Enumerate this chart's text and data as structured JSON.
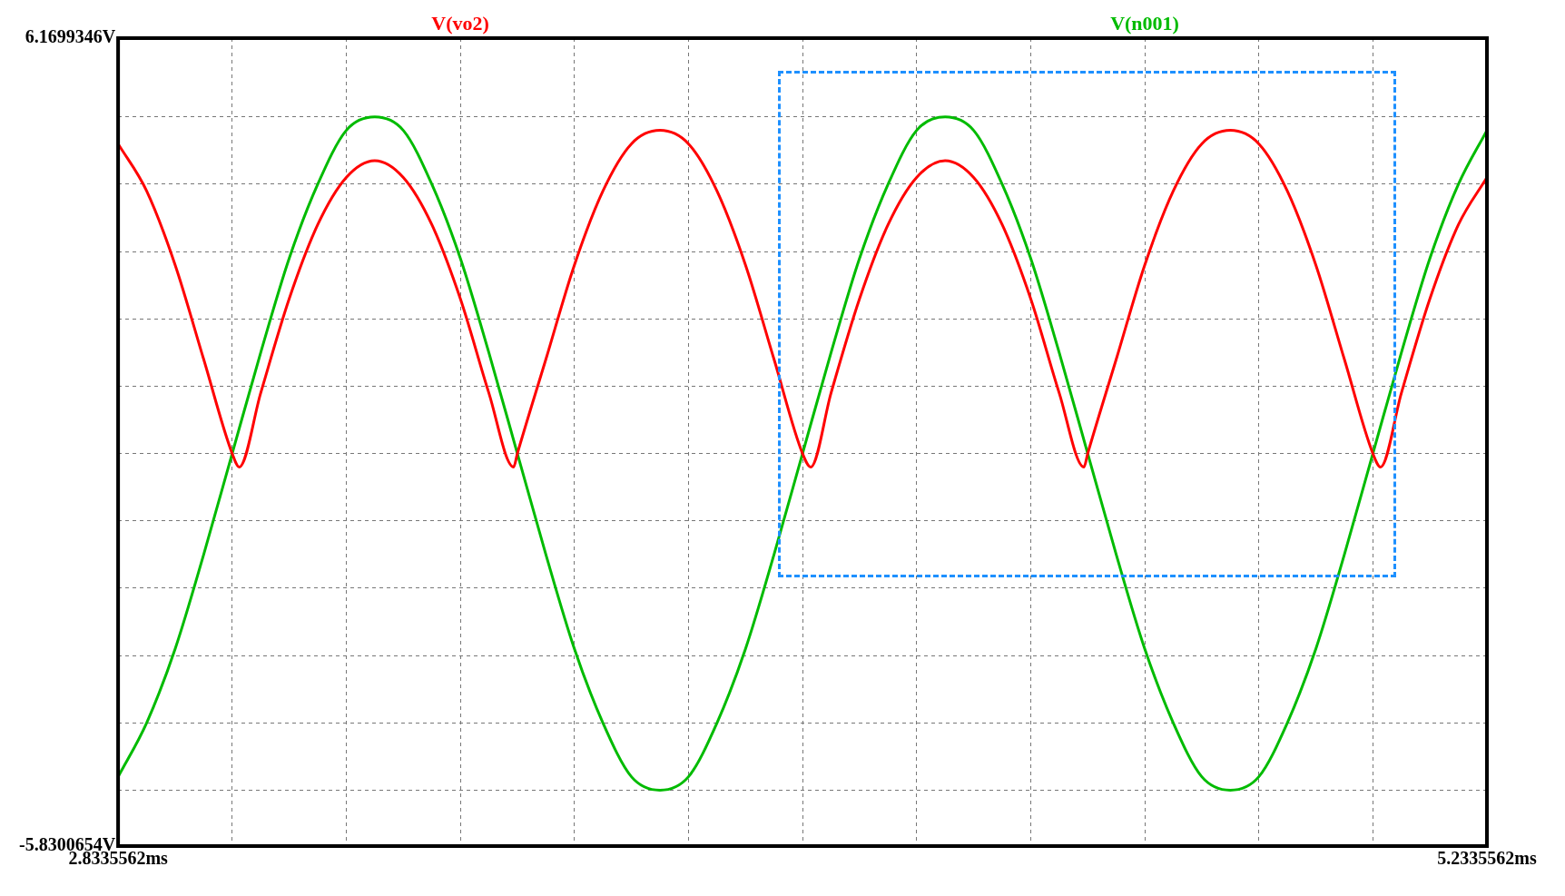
{
  "chart_data": {
    "type": "line",
    "xlim": [
      2.8335562,
      5.2335562
    ],
    "ylim": [
      -5.8300654,
      6.1699346
    ],
    "xticks": [
      {
        "value": 2.8335562,
        "label": "2.8335562ms"
      },
      {
        "value": 3.0335562,
        "label": null
      },
      {
        "value": 3.2335562,
        "label": null
      },
      {
        "value": 3.4335562,
        "label": null
      },
      {
        "value": 3.6335562,
        "label": null
      },
      {
        "value": 3.8335562,
        "label": null
      },
      {
        "value": 4.0335562,
        "label": null
      },
      {
        "value": 4.2335562,
        "label": null
      },
      {
        "value": 4.4335562,
        "label": null
      },
      {
        "value": 4.6335562,
        "label": null
      },
      {
        "value": 4.8335562,
        "label": null
      },
      {
        "value": 5.0335562,
        "label": null
      },
      {
        "value": 5.2335562,
        "label": "5.2335562ms"
      }
    ],
    "yticks": [
      {
        "value": -5.8300654,
        "label": "-5.8300654V"
      },
      {
        "value": -5,
        "label": null
      },
      {
        "value": -4,
        "label": null
      },
      {
        "value": -3,
        "label": null
      },
      {
        "value": -2,
        "label": null
      },
      {
        "value": -1,
        "label": null
      },
      {
        "value": 0,
        "label": null
      },
      {
        "value": 1,
        "label": null
      },
      {
        "value": 2,
        "label": null
      },
      {
        "value": 3,
        "label": null
      },
      {
        "value": 4,
        "label": null
      },
      {
        "value": 5,
        "label": null
      },
      {
        "value": 6.1699346,
        "label": "6.1699346V"
      }
    ],
    "grid": true,
    "marker": "none",
    "line_style": "solid",
    "series": [
      {
        "name": "V(vo2)",
        "color": "#ff0000",
        "x": [
          2.8336,
          2.8836,
          2.9336,
          2.9836,
          3.0336,
          3.046,
          3.0836,
          3.1336,
          3.1836,
          3.2336,
          3.2836,
          3.3336,
          3.3836,
          3.4336,
          3.4836,
          3.527,
          3.5336,
          3.5836,
          3.6336,
          3.6836,
          3.7336,
          3.7836,
          3.8336,
          3.8836,
          3.9336,
          3.9836,
          4.0336,
          4.048,
          4.0836,
          4.1336,
          4.1836,
          4.2336,
          4.2836,
          4.3336,
          4.3836,
          4.4336,
          4.4836,
          4.527,
          4.5336,
          4.5836,
          4.6336,
          4.6836,
          4.7336,
          4.7836,
          4.8336,
          4.8836,
          4.9336,
          4.9836,
          5.0336,
          5.047,
          5.0836,
          5.1336,
          5.1836,
          5.2335
        ],
        "values": [
          4.6,
          3.9,
          2.8,
          1.4,
          0.0,
          -0.2,
          0.9,
          2.3,
          3.4,
          4.1,
          4.35,
          4.1,
          3.4,
          2.3,
          0.9,
          -0.2,
          0.0,
          1.4,
          2.8,
          3.9,
          4.6,
          4.8,
          4.6,
          3.9,
          2.8,
          1.4,
          0.0,
          -0.2,
          0.9,
          2.3,
          3.4,
          4.1,
          4.35,
          4.1,
          3.4,
          2.3,
          0.9,
          -0.2,
          0.0,
          1.4,
          2.8,
          3.9,
          4.6,
          4.8,
          4.6,
          3.9,
          2.8,
          1.4,
          0.0,
          -0.2,
          0.9,
          2.3,
          3.4,
          4.1
        ]
      },
      {
        "name": "V(n001)",
        "color": "#00bb00",
        "x": [
          2.8336,
          2.8836,
          2.9336,
          2.9836,
          3.0336,
          3.0836,
          3.1336,
          3.1836,
          3.2336,
          3.2836,
          3.3336,
          3.3836,
          3.4336,
          3.4836,
          3.5336,
          3.5836,
          3.6336,
          3.6836,
          3.7336,
          3.7836,
          3.8336,
          3.8836,
          3.9336,
          3.9836,
          4.0336,
          4.0836,
          4.1336,
          4.1836,
          4.2336,
          4.2836,
          4.3336,
          4.3836,
          4.4336,
          4.4836,
          4.5336,
          4.5836,
          4.6336,
          4.6836,
          4.7336,
          4.7836,
          4.8336,
          4.8836,
          4.9336,
          4.9836,
          5.0336,
          5.0836,
          5.1336,
          5.1836,
          5.2335
        ],
        "values": [
          -4.8,
          -4.0,
          -2.9,
          -1.5,
          0,
          1.5,
          2.9,
          4.0,
          4.8,
          5.0,
          4.8,
          4.0,
          2.9,
          1.5,
          0,
          -1.5,
          -2.9,
          -4.0,
          -4.8,
          -5.0,
          -4.8,
          -4.0,
          -2.9,
          -1.5,
          0,
          1.5,
          2.9,
          4.0,
          4.8,
          5.0,
          4.8,
          4.0,
          2.9,
          1.5,
          0,
          -1.5,
          -2.9,
          -4.0,
          -4.8,
          -5.0,
          -4.8,
          -4.0,
          -2.9,
          -1.5,
          0,
          1.5,
          2.9,
          4.0,
          4.8
        ]
      }
    ]
  }
}
